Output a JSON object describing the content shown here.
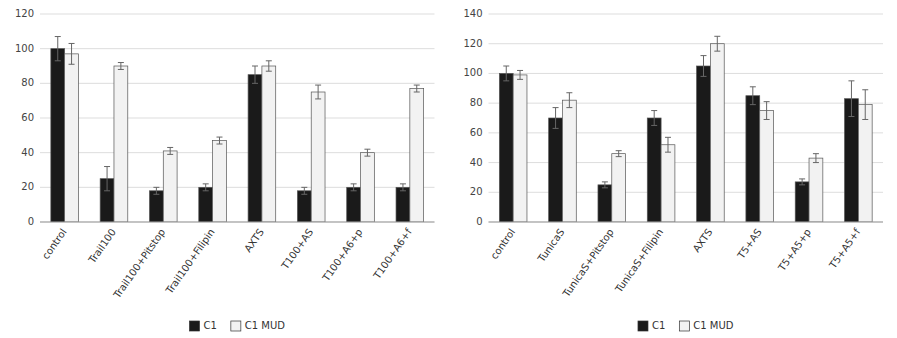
{
  "chart_data": [
    {
      "type": "bar",
      "categories": [
        "control",
        "Trail100",
        "Trail100+Pitstop",
        "Trail100+Filipin",
        "AXTS",
        "T100+AS",
        "T100+A6+p",
        "T100+A6+f"
      ],
      "series": [
        {
          "name": "C1",
          "color": "#1a1a1a",
          "values": [
            100,
            25,
            18,
            20,
            85,
            18,
            20,
            20
          ],
          "errors": [
            7,
            7,
            2,
            2,
            5,
            2,
            2,
            2
          ]
        },
        {
          "name": "C1 MUD",
          "color": "#f2f2f2",
          "values": [
            97,
            90,
            41,
            47,
            90,
            75,
            40,
            77
          ],
          "errors": [
            6,
            2,
            2,
            2,
            3,
            4,
            2,
            2
          ]
        }
      ],
      "ylim": [
        0,
        120
      ],
      "yticks": [
        0,
        20,
        40,
        60,
        80,
        100,
        120
      ],
      "grid": true,
      "legend": "bottom"
    },
    {
      "type": "bar",
      "categories": [
        "control",
        "TunicaS",
        "TunicaS+Pitstop",
        "TunicaS+Filipin",
        "AXTS",
        "T5+AS",
        "T5+A5+p",
        "T5+A5+f"
      ],
      "series": [
        {
          "name": "C1",
          "color": "#1a1a1a",
          "values": [
            100,
            70,
            25,
            70,
            105,
            85,
            27,
            83
          ],
          "errors": [
            5,
            7,
            2,
            5,
            7,
            6,
            2,
            12
          ]
        },
        {
          "name": "C1 MUD",
          "color": "#f2f2f2",
          "values": [
            99,
            82,
            46,
            52,
            120,
            75,
            43,
            79
          ],
          "errors": [
            3,
            5,
            2,
            5,
            5,
            6,
            3,
            10
          ]
        }
      ],
      "ylim": [
        0,
        140
      ],
      "yticks": [
        0,
        20,
        40,
        60,
        80,
        100,
        120,
        140
      ],
      "grid": true,
      "legend": "bottom"
    }
  ]
}
